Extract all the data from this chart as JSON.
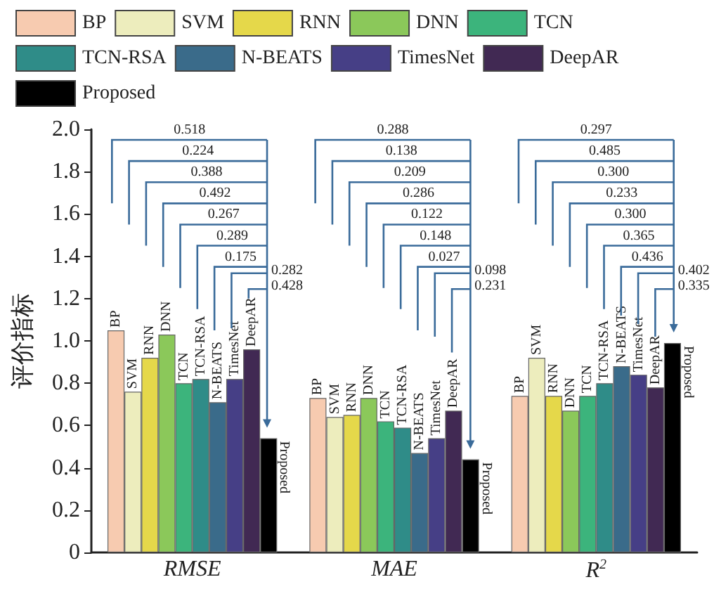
{
  "chart_data": {
    "type": "bar",
    "ylabel": "评价指标",
    "categories": [
      "RMSE",
      "MAE",
      "R$^{2}$"
    ],
    "series": [
      {
        "name": "BP",
        "color": "#f7cbb0",
        "values": [
          1.05,
          0.73,
          0.74
        ]
      },
      {
        "name": "SVM",
        "color": "#ededbd",
        "values": [
          0.76,
          0.64,
          0.92
        ]
      },
      {
        "name": "RNN",
        "color": "#e5d84a",
        "values": [
          0.92,
          0.65,
          0.74
        ]
      },
      {
        "name": "DNN",
        "color": "#8bc85a",
        "values": [
          1.03,
          0.73,
          0.67
        ]
      },
      {
        "name": "TCN",
        "color": "#3cb47c",
        "values": [
          0.8,
          0.62,
          0.74
        ]
      },
      {
        "name": "TCN-RSA",
        "color": "#2f8c88",
        "values": [
          0.82,
          0.59,
          0.8
        ]
      },
      {
        "name": "N-BEATS",
        "color": "#3a6b8a",
        "values": [
          0.71,
          0.47,
          0.88
        ]
      },
      {
        "name": "TimesNet",
        "color": "#463f86",
        "values": [
          0.82,
          0.54,
          0.84
        ]
      },
      {
        "name": "DeepAR",
        "color": "#412953",
        "values": [
          0.96,
          0.67,
          0.78
        ]
      },
      {
        "name": "Proposed",
        "color": "#000000",
        "values": [
          0.54,
          0.44,
          0.99
        ]
      }
    ],
    "ylim": [
      0,
      2
    ],
    "yticks": [
      0,
      0.2,
      0.4,
      0.6,
      0.8,
      {
        "value": 1,
        "label": "1.0"
      },
      1.2,
      1.4,
      1.6,
      1.8,
      {
        "value": 2,
        "label": "2.0"
      }
    ],
    "annotations": [
      "0.518",
      "0.224",
      "0.388",
      "0.492",
      "0.267",
      "0.289",
      "0.175",
      "0.282",
      "0.428",
      "0.288",
      "0.138",
      "0.209",
      "0.286",
      "0.122",
      "0.148",
      "0.027",
      "0.098",
      "0.231",
      "0.297",
      "0.485",
      "0.300",
      "0.233",
      "0.300",
      "0.365",
      "0.436",
      "0.402",
      "0.335"
    ],
    "legend": "top",
    "grid": false
  }
}
